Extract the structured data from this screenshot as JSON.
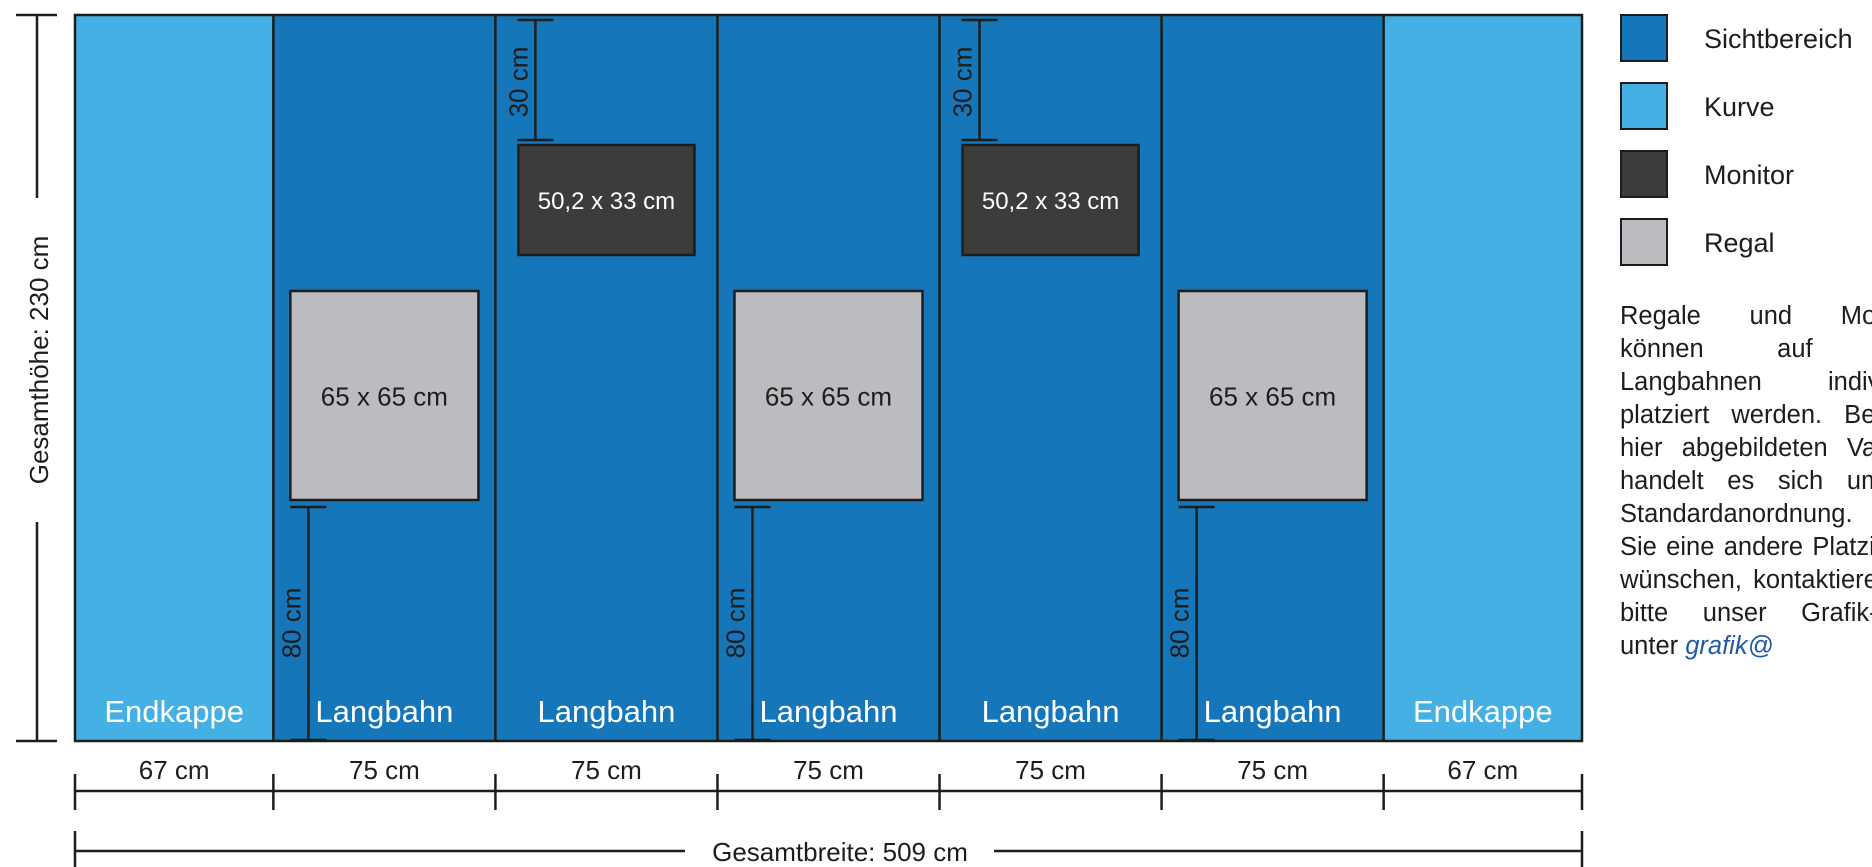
{
  "colors": {
    "sichtbereich": "#1576ba",
    "kurve": "#45b0e3",
    "monitor": "#3c3c3b",
    "regal": "#bcbcc0",
    "lines": "#1d1d1b"
  },
  "panels": [
    {
      "kind": "kurve",
      "label": "Endkappe",
      "width_label": "67 cm",
      "width_cm": 67
    },
    {
      "kind": "sichtbereich",
      "label": "Langbahn",
      "width_label": "75 cm",
      "width_cm": 75
    },
    {
      "kind": "sichtbereich",
      "label": "Langbahn",
      "width_label": "75 cm",
      "width_cm": 75
    },
    {
      "kind": "sichtbereich",
      "label": "Langbahn",
      "width_label": "75 cm",
      "width_cm": 75
    },
    {
      "kind": "sichtbereich",
      "label": "Langbahn",
      "width_label": "75 cm",
      "width_cm": 75
    },
    {
      "kind": "sichtbereich",
      "label": "Langbahn",
      "width_label": "75 cm",
      "width_cm": 75
    },
    {
      "kind": "kurve",
      "label": "Endkappe",
      "width_label": "67 cm",
      "width_cm": 67
    }
  ],
  "monitors": [
    {
      "panel": 2,
      "label": "50,2 x 33 cm",
      "offset_label": "30 cm"
    },
    {
      "panel": 4,
      "label": "50,2 x 33 cm",
      "offset_label": "30 cm"
    }
  ],
  "shelves": [
    {
      "panel": 1,
      "label": "65 x 65 cm",
      "height_label": "80 cm"
    },
    {
      "panel": 3,
      "label": "65 x 65 cm",
      "height_label": "80 cm"
    },
    {
      "panel": 5,
      "label": "65 x 65 cm",
      "height_label": "80 cm"
    }
  ],
  "total_height_label": "Gesamthöhe: 230 cm",
  "total_width_label": "Gesamtbreite: 509 cm",
  "legend": [
    {
      "key": "sichtbereich",
      "label": "Sichtbereich"
    },
    {
      "key": "kurve",
      "label": "Kurve"
    },
    {
      "key": "monitor",
      "label": "Monitor"
    },
    {
      "key": "regal",
      "label": "Regal"
    }
  ],
  "note": {
    "text": "Regale und Monitore können auf allen Langbahnen individuell platziert werden. Bei der hier abgebildeten Variante handelt es sich um die Standardanordnung. Falls Sie eine andere Platzierung wünschen, kontaktieren Sie bitte unser Grafik-Team unter",
    "email": "grafik@"
  }
}
